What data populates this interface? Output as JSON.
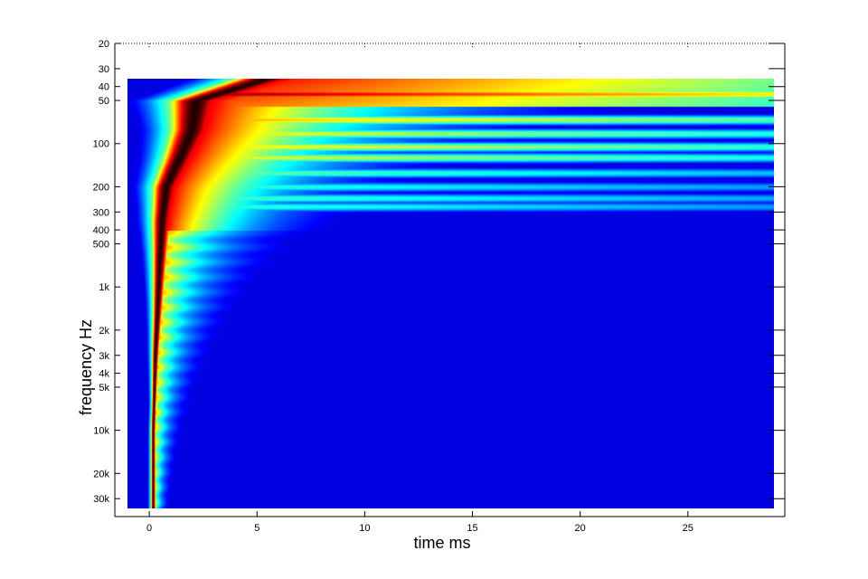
{
  "chart_data": {
    "type": "heatmap",
    "title": "",
    "xlabel": "time   ms",
    "ylabel": "frequency   Hz",
    "x": {
      "range": [
        -1.6,
        29.5
      ],
      "data_range": [
        -1.0,
        29.0
      ],
      "ticks": [
        0,
        5,
        10,
        15,
        20,
        25
      ],
      "tick_labels": [
        "0",
        "5",
        "10",
        "15",
        "20",
        "25"
      ]
    },
    "y": {
      "scale": "log",
      "range": [
        20,
        40000
      ],
      "data_range": [
        35,
        35000
      ],
      "ticks": [
        20,
        30,
        40,
        50,
        100,
        200,
        300,
        400,
        500,
        1000,
        2000,
        3000,
        4000,
        5000,
        10000,
        20000,
        30000
      ],
      "tick_labels": [
        "20",
        "30",
        "40",
        "50",
        "100",
        "200",
        "300",
        "400",
        "500",
        "1k",
        "2k",
        "3k",
        "4k",
        "5k",
        "10k",
        "20k",
        "30k"
      ]
    },
    "colormap": "jet",
    "colormap_stops": [
      "#00008f",
      "#0000ff",
      "#0080ff",
      "#00ffff",
      "#80ff80",
      "#ffff00",
      "#ff8000",
      "#ff0000",
      "#800000",
      "#000000"
    ],
    "background_color": "#00008f",
    "peak_color": "#000000",
    "grid": false,
    "ridge": {
      "description_points_freq_hz": [
        35,
        50,
        80,
        120,
        200,
        350,
        700,
        1500,
        3000,
        10000,
        35000
      ],
      "time_ms": [
        5.5,
        2.2,
        2.0,
        1.5,
        0.8,
        0.6,
        0.5,
        0.4,
        0.3,
        0.2,
        0.2
      ]
    },
    "resonance_bands": [
      {
        "freq_hz": 45,
        "level": 0.88,
        "decay_ms": 200
      },
      {
        "freq_hz": 68,
        "level": 0.65,
        "decay_ms": 40
      },
      {
        "freq_hz": 85,
        "level": 0.58,
        "decay_ms": 28
      },
      {
        "freq_hz": 105,
        "level": 0.6,
        "decay_ms": 35
      },
      {
        "freq_hz": 125,
        "level": 0.56,
        "decay_ms": 30
      },
      {
        "freq_hz": 160,
        "level": 0.45,
        "decay_ms": 26
      },
      {
        "freq_hz": 200,
        "level": 0.4,
        "decay_ms": 20
      },
      {
        "freq_hz": 240,
        "level": 0.42,
        "decay_ms": 22
      },
      {
        "freq_hz": 275,
        "level": 0.4,
        "decay_ms": 18
      }
    ]
  }
}
